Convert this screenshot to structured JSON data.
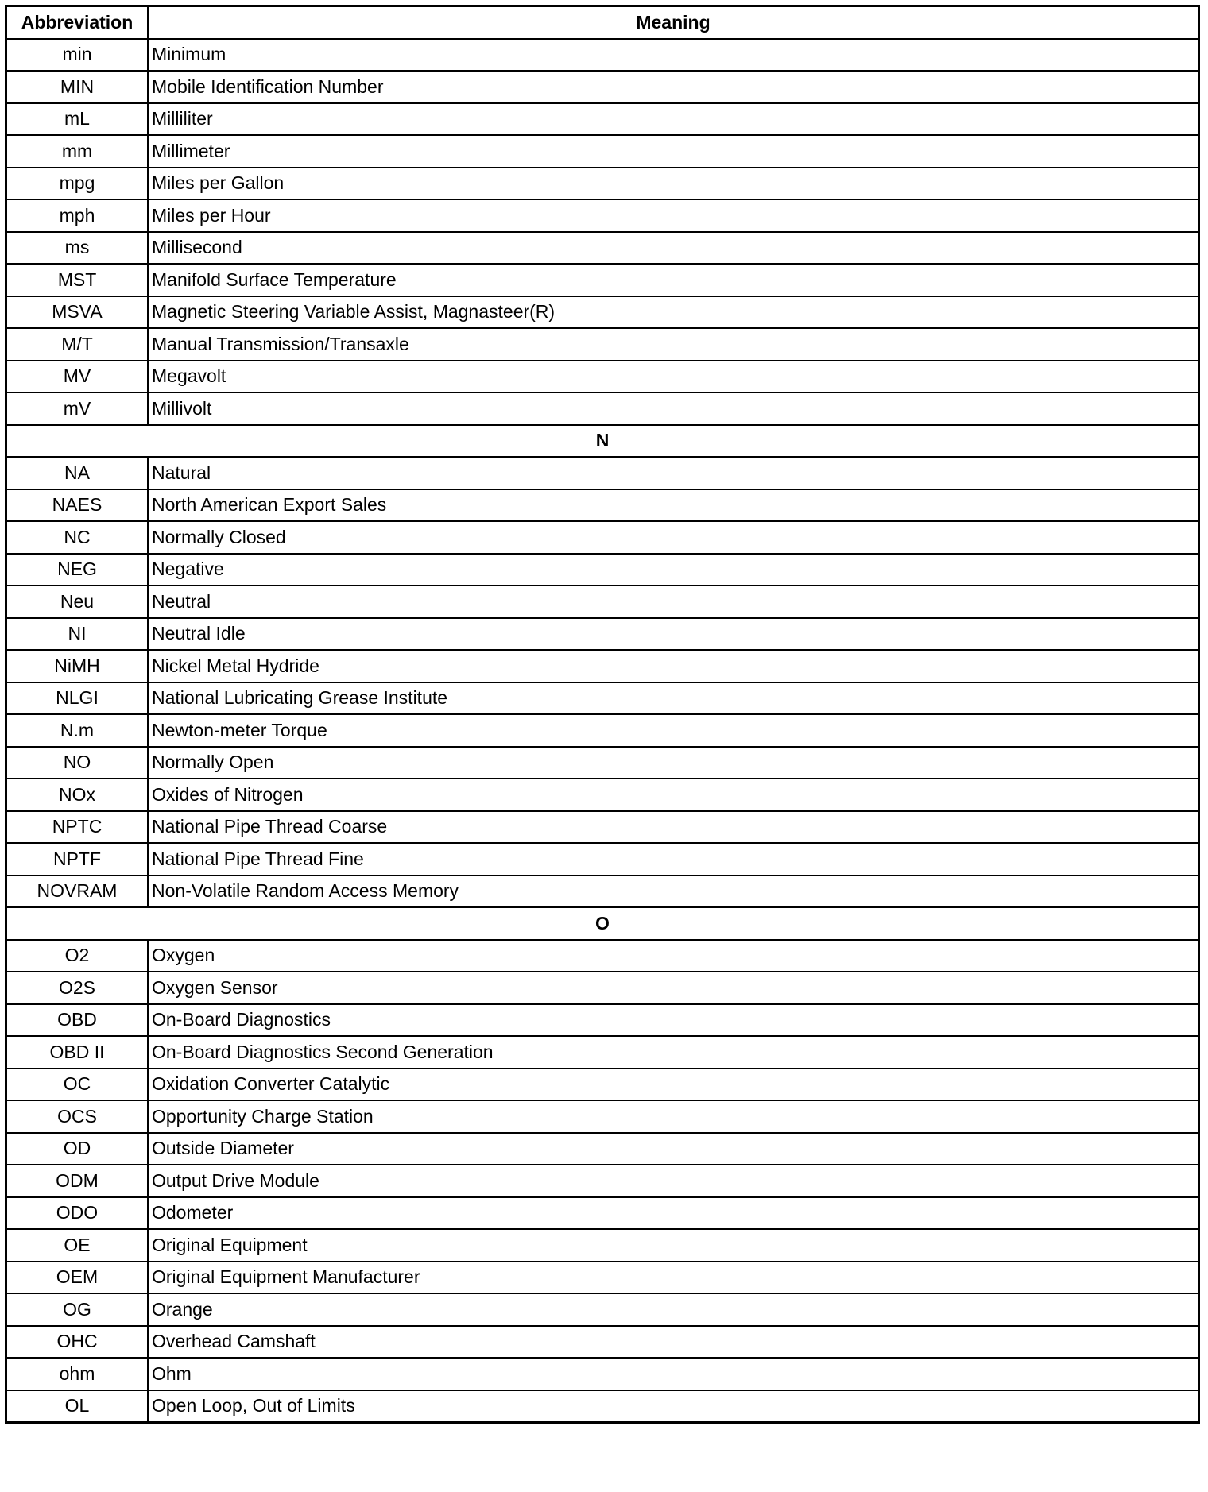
{
  "table": {
    "headers": [
      "Abbreviation",
      "Meaning"
    ],
    "rows": [
      {
        "abbr": "min",
        "meaning": "Minimum"
      },
      {
        "abbr": "MIN",
        "meaning": "Mobile Identification Number"
      },
      {
        "abbr": "mL",
        "meaning": "Milliliter"
      },
      {
        "abbr": "mm",
        "meaning": "Millimeter"
      },
      {
        "abbr": "mpg",
        "meaning": "Miles per Gallon"
      },
      {
        "abbr": "mph",
        "meaning": "Miles per Hour"
      },
      {
        "abbr": "ms",
        "meaning": "Millisecond"
      },
      {
        "abbr": "MST",
        "meaning": "Manifold Surface Temperature"
      },
      {
        "abbr": "MSVA",
        "meaning": "Magnetic Steering Variable Assist, Magnasteer(R)"
      },
      {
        "abbr": "M/T",
        "meaning": "Manual Transmission/Transaxle"
      },
      {
        "abbr": "MV",
        "meaning": "Megavolt"
      },
      {
        "abbr": "mV",
        "meaning": "Millivolt"
      },
      {
        "section": "N"
      },
      {
        "abbr": "NA",
        "meaning": "Natural"
      },
      {
        "abbr": "NAES",
        "meaning": "North American Export Sales"
      },
      {
        "abbr": "NC",
        "meaning": "Normally Closed"
      },
      {
        "abbr": "NEG",
        "meaning": "Negative"
      },
      {
        "abbr": "Neu",
        "meaning": "Neutral"
      },
      {
        "abbr": "NI",
        "meaning": "Neutral Idle"
      },
      {
        "abbr": "NiMH",
        "meaning": "Nickel Metal Hydride"
      },
      {
        "abbr": "NLGI",
        "meaning": "National Lubricating Grease Institute"
      },
      {
        "abbr": "N.m",
        "meaning": "Newton-meter Torque"
      },
      {
        "abbr": "NO",
        "meaning": "Normally Open"
      },
      {
        "abbr": "NOx",
        "meaning": "Oxides of Nitrogen"
      },
      {
        "abbr": "NPTC",
        "meaning": "National Pipe Thread Coarse"
      },
      {
        "abbr": "NPTF",
        "meaning": "National Pipe Thread Fine"
      },
      {
        "abbr": "NOVRAM",
        "meaning": "Non-Volatile Random Access Memory"
      },
      {
        "section": "O"
      },
      {
        "abbr": "O2",
        "meaning": "Oxygen"
      },
      {
        "abbr": "O2S",
        "meaning": "Oxygen Sensor"
      },
      {
        "abbr": "OBD",
        "meaning": "On-Board Diagnostics"
      },
      {
        "abbr": "OBD II",
        "meaning": "On-Board Diagnostics Second Generation"
      },
      {
        "abbr": "OC",
        "meaning": "Oxidation Converter Catalytic"
      },
      {
        "abbr": "OCS",
        "meaning": "Opportunity Charge Station"
      },
      {
        "abbr": "OD",
        "meaning": "Outside Diameter"
      },
      {
        "abbr": "ODM",
        "meaning": "Output Drive Module"
      },
      {
        "abbr": "ODO",
        "meaning": "Odometer"
      },
      {
        "abbr": "OE",
        "meaning": "Original Equipment"
      },
      {
        "abbr": "OEM",
        "meaning": "Original Equipment Manufacturer"
      },
      {
        "abbr": "OG",
        "meaning": "Orange"
      },
      {
        "abbr": "OHC",
        "meaning": "Overhead Camshaft"
      },
      {
        "abbr": "ohm",
        "meaning": "Ohm"
      },
      {
        "abbr": "OL",
        "meaning": "Open Loop, Out of Limits"
      }
    ]
  }
}
